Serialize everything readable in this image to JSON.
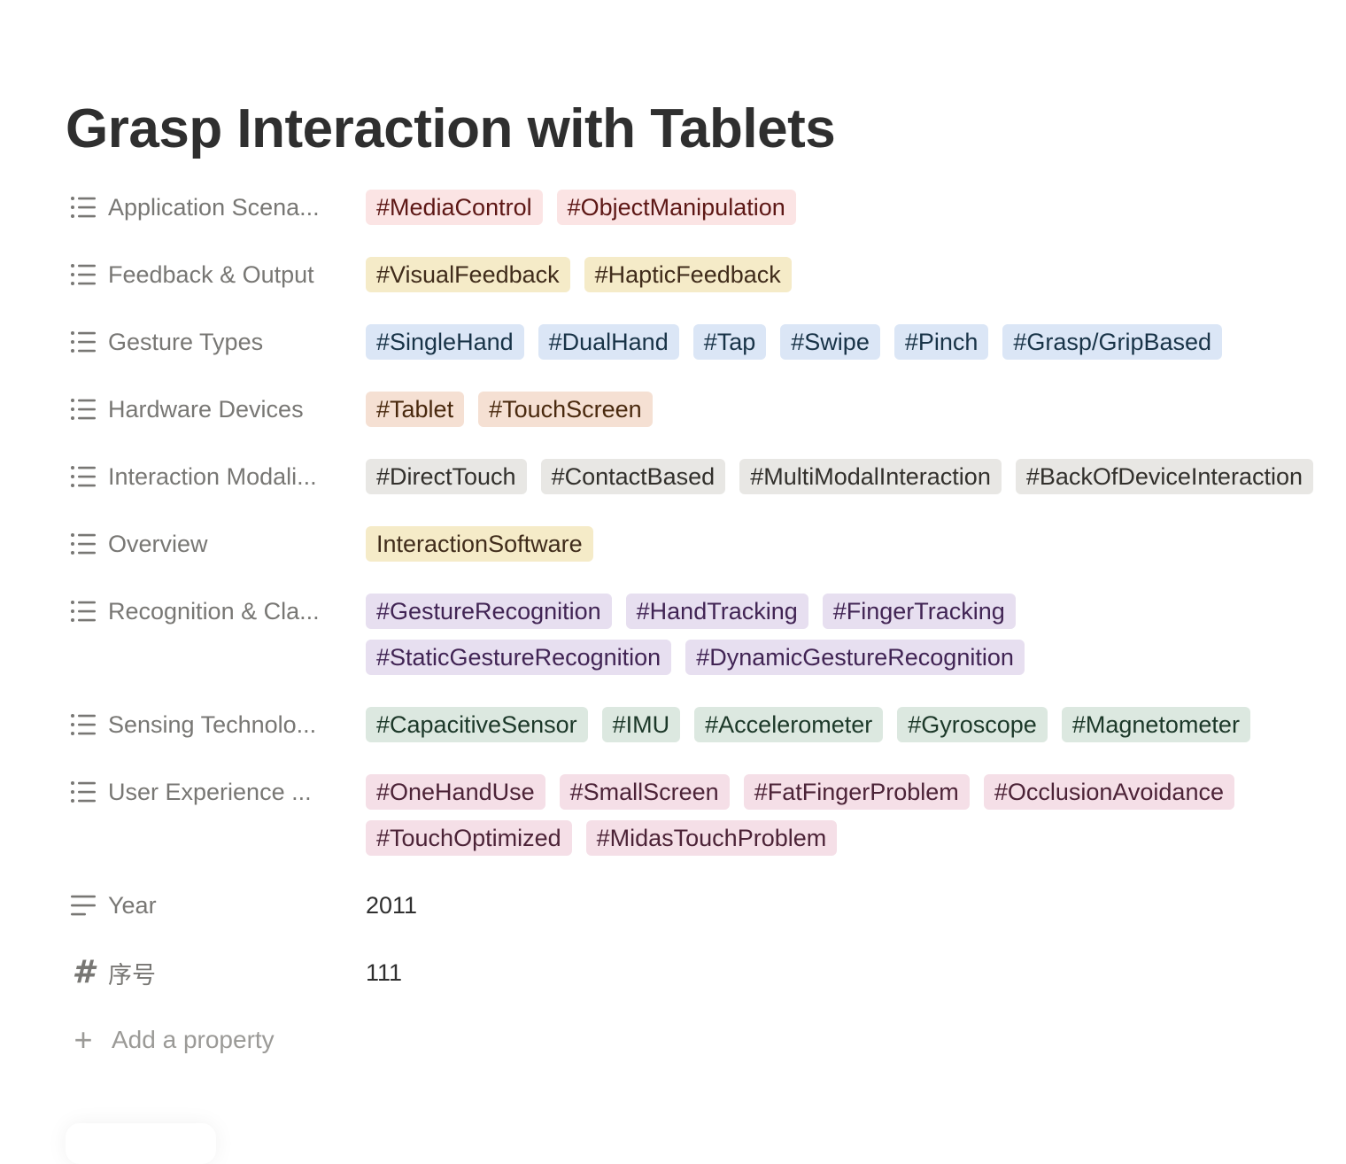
{
  "page": {
    "title": "Grasp Interaction with Tablets"
  },
  "properties": [
    {
      "label": "Application Scena...",
      "icon": "list-icon",
      "tags": [
        {
          "text": "#MediaControl",
          "color": "red"
        },
        {
          "text": "#ObjectManipulation",
          "color": "red"
        }
      ]
    },
    {
      "label": "Feedback & Output",
      "icon": "list-icon",
      "tags": [
        {
          "text": "#VisualFeedback",
          "color": "yellow"
        },
        {
          "text": "#HapticFeedback",
          "color": "yellow"
        }
      ]
    },
    {
      "label": "Gesture Types",
      "icon": "list-icon",
      "tags": [
        {
          "text": "#SingleHand",
          "color": "blue"
        },
        {
          "text": "#DualHand",
          "color": "blue"
        },
        {
          "text": "#Tap",
          "color": "blue"
        },
        {
          "text": "#Swipe",
          "color": "blue"
        },
        {
          "text": "#Pinch",
          "color": "blue"
        },
        {
          "text": "#Grasp/GripBased",
          "color": "blue"
        }
      ]
    },
    {
      "label": "Hardware Devices",
      "icon": "list-icon",
      "tags": [
        {
          "text": "#Tablet",
          "color": "orange"
        },
        {
          "text": "#TouchScreen",
          "color": "orange"
        }
      ]
    },
    {
      "label": "Interaction Modali...",
      "icon": "list-icon",
      "tags": [
        {
          "text": "#DirectTouch",
          "color": "gray"
        },
        {
          "text": "#ContactBased",
          "color": "gray"
        },
        {
          "text": "#MultiModalInteraction",
          "color": "gray"
        },
        {
          "text": "#BackOfDeviceInteraction",
          "color": "gray"
        }
      ]
    },
    {
      "label": "Overview",
      "icon": "list-icon",
      "tags": [
        {
          "text": "InteractionSoftware",
          "color": "yellow"
        }
      ]
    },
    {
      "label": "Recognition & Cla...",
      "icon": "list-icon",
      "tags": [
        {
          "text": "#GestureRecognition",
          "color": "purple"
        },
        {
          "text": "#HandTracking",
          "color": "purple"
        },
        {
          "text": "#FingerTracking",
          "color": "purple"
        },
        {
          "text": "#StaticGestureRecognition",
          "color": "purple"
        },
        {
          "text": "#DynamicGestureRecognition",
          "color": "purple"
        }
      ]
    },
    {
      "label": "Sensing Technolo...",
      "icon": "list-icon",
      "tags": [
        {
          "text": "#CapacitiveSensor",
          "color": "green"
        },
        {
          "text": "#IMU",
          "color": "green"
        },
        {
          "text": "#Accelerometer",
          "color": "green"
        },
        {
          "text": "#Gyroscope",
          "color": "green"
        },
        {
          "text": "#Magnetometer",
          "color": "green"
        }
      ]
    },
    {
      "label": "User Experience ...",
      "icon": "list-icon",
      "tags": [
        {
          "text": "#OneHandUse",
          "color": "pink"
        },
        {
          "text": "#SmallScreen",
          "color": "pink"
        },
        {
          "text": "#FatFingerProblem",
          "color": "pink"
        },
        {
          "text": "#OcclusionAvoidance",
          "color": "pink"
        },
        {
          "text": "#TouchOptimized",
          "color": "pink"
        },
        {
          "text": "#MidasTouchProblem",
          "color": "pink"
        }
      ]
    },
    {
      "label": "Year",
      "icon": "text-lines-icon",
      "value": "2011"
    },
    {
      "label": "序号",
      "icon": "hash-icon",
      "value": "111"
    }
  ],
  "add_property": {
    "label": "Add a property",
    "icon": "plus-icon"
  }
}
